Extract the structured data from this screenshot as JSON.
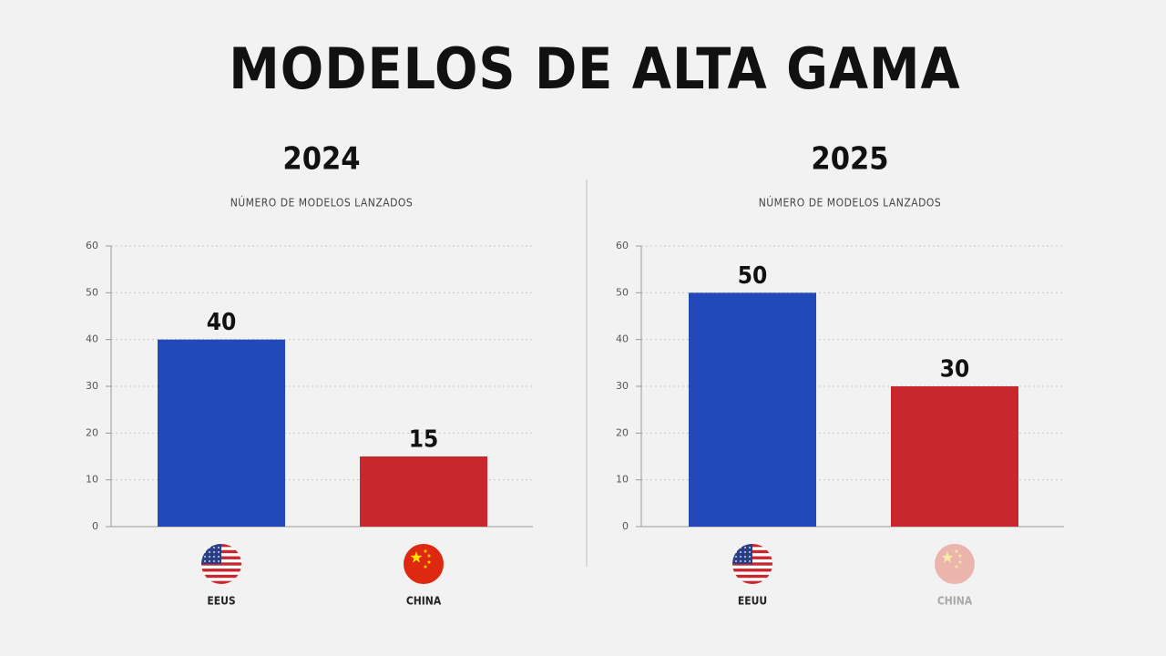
{
  "title": "MODELOS DE ALTA GAMA",
  "chart_data": [
    {
      "type": "bar",
      "title": "2024",
      "subtitle": "NÚMERO DE MODELOS LANZADOS",
      "categories": [
        "EEUS",
        "CHINA"
      ],
      "values": [
        40,
        15
      ],
      "colors": [
        "#2249b9",
        "#c8282d"
      ],
      "ylim": [
        0,
        60
      ],
      "yticks": [
        0,
        10,
        20,
        30,
        40,
        50,
        60
      ],
      "grid": true
    },
    {
      "type": "bar",
      "title": "2025",
      "subtitle": "NÚMERO DE MODELOS LANZADOS",
      "categories": [
        "EEUU",
        "CHINA"
      ],
      "values": [
        50,
        30
      ],
      "colors": [
        "#2249b9",
        "#c8282d"
      ],
      "ylim": [
        0,
        60
      ],
      "yticks": [
        0,
        10,
        20,
        30,
        40,
        50,
        60
      ],
      "grid": true
    }
  ]
}
